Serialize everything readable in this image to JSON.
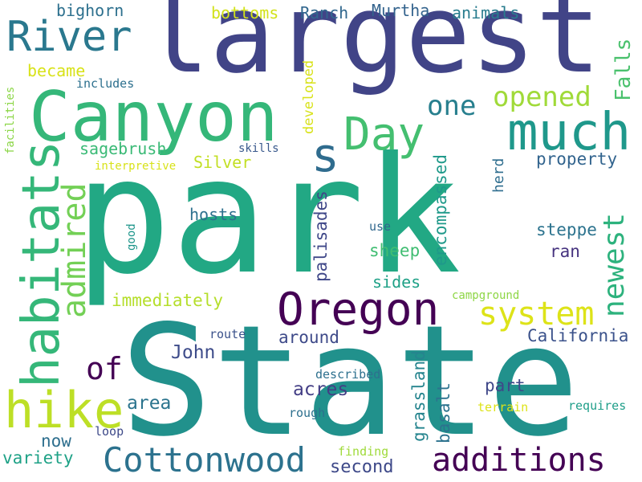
{
  "words": [
    {
      "text": "park",
      "color": "#22a884"
    },
    {
      "text": "State",
      "color": "#21918c"
    },
    {
      "text": "largest",
      "color": "#414487"
    },
    {
      "text": "Canyon",
      "color": "#35b779"
    },
    {
      "text": "River",
      "color": "#2a788e"
    },
    {
      "text": "much",
      "color": "#1f988b"
    },
    {
      "text": "Day",
      "color": "#44bf70"
    },
    {
      "text": "s",
      "color": "#2f6c8e"
    },
    {
      "text": "habitats",
      "color": "#35b779"
    },
    {
      "text": "admired",
      "color": "#73d056"
    },
    {
      "text": "Oregon",
      "color": "#440154"
    },
    {
      "text": "hike",
      "color": "#bddf26"
    },
    {
      "text": "Cottonwood",
      "color": "#2c728e"
    },
    {
      "text": "additions",
      "color": "#440154"
    },
    {
      "text": "system",
      "color": "#dde318"
    },
    {
      "text": "newest",
      "color": "#2db27d"
    },
    {
      "text": "one",
      "color": "#277f8e"
    },
    {
      "text": "opened",
      "color": "#a0da39"
    },
    {
      "text": "of",
      "color": "#440154"
    },
    {
      "text": "bighorn",
      "color": "#2d708e"
    },
    {
      "text": "bottoms",
      "color": "#d2e21b"
    },
    {
      "text": "Ranch",
      "color": "#31678e"
    },
    {
      "text": "Murtha",
      "color": "#33638d"
    },
    {
      "text": "animals",
      "color": "#287c8e"
    },
    {
      "text": "Falls",
      "color": "#4ac16d"
    },
    {
      "text": "became",
      "color": "#d8e219"
    },
    {
      "text": "includes",
      "color": "#2d708e"
    },
    {
      "text": "developed",
      "color": "#d8e219"
    },
    {
      "text": "sagebrush",
      "color": "#3aba76"
    },
    {
      "text": "Silver",
      "color": "#c2df23"
    },
    {
      "text": "skills",
      "color": "#38588c"
    },
    {
      "text": "interpretive",
      "color": "#d8e219"
    },
    {
      "text": "property",
      "color": "#32648e"
    },
    {
      "text": "herd",
      "color": "#2e6d8e"
    },
    {
      "text": "encompassed",
      "color": "#1f998a"
    },
    {
      "text": "palisades",
      "color": "#3f4788"
    },
    {
      "text": "hosts",
      "color": "#2d708e"
    },
    {
      "text": "use",
      "color": "#31688e"
    },
    {
      "text": "steppe",
      "color": "#2c738e"
    },
    {
      "text": "good",
      "color": "#1f968b"
    },
    {
      "text": "sheep",
      "color": "#40bd72"
    },
    {
      "text": "ran",
      "color": "#46337f"
    },
    {
      "text": "sides",
      "color": "#1fa187"
    },
    {
      "text": "campground",
      "color": "#8ed645"
    },
    {
      "text": "immediately",
      "color": "#b5de2b"
    },
    {
      "text": "around",
      "color": "#3e4a89"
    },
    {
      "text": "California",
      "color": "#3b528b"
    },
    {
      "text": "John",
      "color": "#3e4c8a"
    },
    {
      "text": "route",
      "color": "#3b528b"
    },
    {
      "text": "part",
      "color": "#3f4889"
    },
    {
      "text": "grassland",
      "color": "#25848e"
    },
    {
      "text": "basalt",
      "color": "#2c728e"
    },
    {
      "text": "described",
      "color": "#2d708e"
    },
    {
      "text": "acres",
      "color": "#433e85"
    },
    {
      "text": "area",
      "color": "#2b748e"
    },
    {
      "text": "rough",
      "color": "#2d708e"
    },
    {
      "text": "terrain",
      "color": "#dde318"
    },
    {
      "text": "requires",
      "color": "#1f9e89"
    },
    {
      "text": "loop",
      "color": "#3e4a89"
    },
    {
      "text": "now",
      "color": "#2e6f8e"
    },
    {
      "text": "variety",
      "color": "#1fa287"
    },
    {
      "text": "finding",
      "color": "#9fda3a"
    },
    {
      "text": "second",
      "color": "#3e4989"
    },
    {
      "text": "facilities",
      "color": "#8bd646"
    }
  ]
}
